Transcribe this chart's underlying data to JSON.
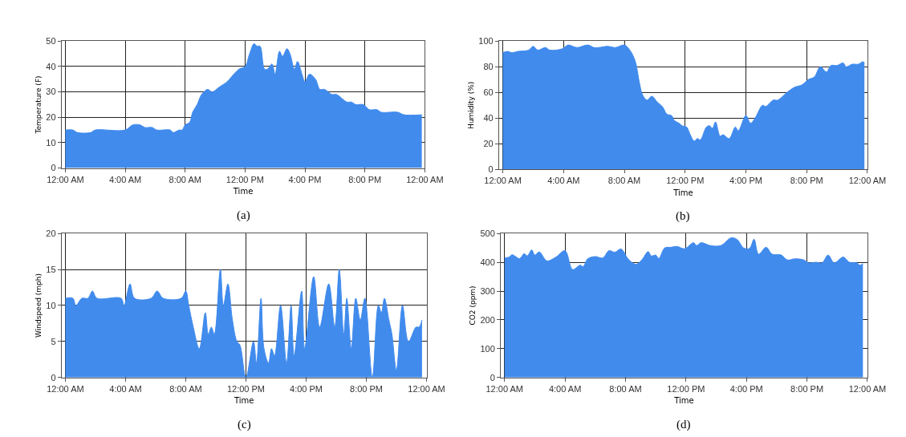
{
  "chart_data": [
    {
      "type": "area",
      "xlabel": "Time",
      "ylabel": "Temperature (F)",
      "annotations": [
        "(a)"
      ],
      "grid": true,
      "xlim": [
        -0.25,
        24
      ],
      "ylim": [
        0,
        50
      ],
      "yticks": [
        0,
        10,
        20,
        30,
        40,
        50
      ],
      "xticks": [
        {
          "value": 0,
          "label": "12:00 AM"
        },
        {
          "value": 4,
          "label": "4:00 AM"
        },
        {
          "value": 8,
          "label": "8:00 AM"
        },
        {
          "value": 12,
          "label": "12:00 PM"
        },
        {
          "value": 16,
          "label": "4:00 PM"
        },
        {
          "value": 20,
          "label": "8:00 PM"
        },
        {
          "value": 24,
          "label": "12:00 AM"
        }
      ],
      "series": [
        {
          "color": "#418bed",
          "x": [
            0,
            0.5,
            0.8,
            1.7,
            2,
            4,
            4.5,
            5,
            5.3,
            5.8,
            6.1,
            7,
            7.2,
            7.6,
            7.8,
            8,
            8.3,
            8.5,
            8.8,
            9.1,
            9.5,
            9.8,
            10.3,
            10.8,
            11.1,
            11.6,
            12,
            12.3,
            12.6,
            12.8,
            13,
            13.3,
            13.5,
            13.8,
            14,
            14.3,
            14.5,
            14.8,
            15,
            15.3,
            15.5,
            15.8,
            16,
            16.3,
            16.7,
            17,
            17.3,
            17.8,
            18.1,
            18.8,
            19.1,
            19.4,
            19.9,
            20.3,
            20.8,
            21.1,
            22.2,
            22.6,
            23.8
          ],
          "values": [
            15,
            15,
            14,
            14,
            15,
            15,
            17,
            17,
            16,
            16,
            15,
            15,
            14,
            15,
            15,
            17,
            18,
            22,
            25,
            29,
            31,
            30,
            32,
            34,
            36,
            39,
            40,
            45,
            49,
            48,
            48,
            39,
            39,
            41,
            37,
            46,
            44,
            47,
            45,
            39,
            42,
            37,
            34,
            37,
            35,
            31,
            31,
            29,
            29,
            26,
            26,
            25,
            25,
            23,
            23,
            22,
            22,
            21,
            21
          ]
        }
      ]
    },
    {
      "type": "area",
      "xlabel": "Time",
      "ylabel": "Humidity (%)",
      "annotations": [
        "(b)"
      ],
      "grid": true,
      "xlim": [
        -0.25,
        24
      ],
      "ylim": [
        0,
        100
      ],
      "yticks": [
        0,
        20,
        40,
        60,
        80,
        100
      ],
      "xticks": [
        {
          "value": 0,
          "label": "12:00 AM"
        },
        {
          "value": 4,
          "label": "4:00 AM"
        },
        {
          "value": 8,
          "label": "8:00 AM"
        },
        {
          "value": 12,
          "label": "12:00 PM"
        },
        {
          "value": 16,
          "label": "4:00 PM"
        },
        {
          "value": 20,
          "label": "8:00 PM"
        },
        {
          "value": 24,
          "label": "12:00 AM"
        }
      ],
      "series": [
        {
          "color": "#418bed",
          "x": [
            0,
            0.3,
            0.6,
            1,
            1.7,
            2,
            2.3,
            2.8,
            3.1,
            3.9,
            4.3,
            4.6,
            4.9,
            5.6,
            6,
            6.3,
            6.9,
            7.4,
            8,
            8.3,
            8.7,
            9,
            9.2,
            9.5,
            9.8,
            10.2,
            10.5,
            10.8,
            11.1,
            11.3,
            11.6,
            11.8,
            12.1,
            12.3,
            12.6,
            12.8,
            13,
            13.4,
            13.6,
            13.8,
            14,
            14.3,
            14.5,
            14.9,
            15.3,
            15.5,
            16,
            16.3,
            16.6,
            17.1,
            17.3,
            17.8,
            18.1,
            18.7,
            19.2,
            19.7,
            20.1,
            20.5,
            20.9,
            21.3,
            21.6,
            22,
            22.4,
            22.6,
            23,
            23.4,
            23.7,
            23.8
          ],
          "values": [
            91,
            92,
            91,
            92,
            93,
            96,
            93,
            95,
            93,
            94,
            97,
            96,
            95,
            97,
            95,
            95,
            96,
            95,
            97,
            94,
            85,
            67,
            58,
            54,
            57,
            52,
            49,
            43,
            42,
            38,
            36,
            34,
            33,
            28,
            22,
            24,
            23,
            33,
            34,
            32,
            37,
            26,
            27,
            24,
            33,
            30,
            42,
            36,
            40,
            50,
            49,
            54,
            54,
            60,
            64,
            66,
            70,
            72,
            80,
            76,
            81,
            81,
            83,
            80,
            82,
            82,
            84,
            83
          ]
        }
      ]
    },
    {
      "type": "area",
      "xlabel": "Time",
      "ylabel": "Windspeed (mph)",
      "annotations": [
        "(c)"
      ],
      "grid": true,
      "xlim": [
        -0.25,
        24
      ],
      "ylim": [
        0,
        20
      ],
      "yticks": [
        0,
        5,
        10,
        15,
        20
      ],
      "xticks": [
        {
          "value": 0,
          "label": "12:00 AM"
        },
        {
          "value": 4,
          "label": "4:00 AM"
        },
        {
          "value": 8,
          "label": "8:00 AM"
        },
        {
          "value": 12,
          "label": "12:00 PM"
        },
        {
          "value": 16,
          "label": "4:00 PM"
        },
        {
          "value": 20,
          "label": "8:00 PM"
        },
        {
          "value": 24,
          "label": "12:00 AM"
        }
      ],
      "series": [
        {
          "color": "#418bed",
          "x": [
            0,
            0.5,
            0.7,
            1.1,
            1.5,
            1.8,
            2.1,
            3.7,
            3.9,
            4.3,
            4.6,
            5.7,
            6.1,
            6.5,
            7.7,
            8,
            8.2,
            8.5,
            8.9,
            9.3,
            9.5,
            9.7,
            9.9,
            10.3,
            10.5,
            10.8,
            11.1,
            11.4,
            11.6,
            12,
            12.5,
            12.7,
            13,
            13.2,
            13.5,
            13.7,
            13.9,
            14.3,
            14.7,
            15,
            15.2,
            15.7,
            15.9,
            16.5,
            16.9,
            17.5,
            17.9,
            18.2,
            18.5,
            18.7,
            19,
            19.3,
            19.6,
            19.9,
            20.4,
            20.8,
            21,
            21.2,
            21.5,
            21.7,
            22,
            22.4,
            22.8,
            23.3,
            23.5,
            23.7
          ],
          "values": [
            11,
            11,
            10,
            11,
            11,
            12,
            11,
            11,
            10,
            13,
            11,
            11,
            12,
            11,
            11,
            12,
            10,
            7,
            4,
            9,
            6,
            7,
            6,
            15,
            10,
            13,
            8,
            5,
            4.5,
            0,
            5,
            2,
            11,
            4,
            2,
            4,
            3,
            10,
            2,
            10,
            3,
            12,
            4,
            14,
            7,
            13,
            7,
            15,
            6,
            11,
            4,
            11,
            8,
            11,
            0,
            10,
            9,
            11,
            8,
            6,
            1,
            10,
            5,
            7,
            7,
            8
          ]
        }
      ]
    },
    {
      "type": "area",
      "xlabel": "Time",
      "ylabel": "CO2 (ppm)",
      "annotations": [
        "(d)"
      ],
      "grid": true,
      "xlim": [
        -0.25,
        24
      ],
      "ylim": [
        0,
        500
      ],
      "yticks": [
        0,
        100,
        200,
        300,
        400,
        500
      ],
      "xticks": [
        {
          "value": 0,
          "label": "12:00 AM"
        },
        {
          "value": 4,
          "label": "4:00 AM"
        },
        {
          "value": 8,
          "label": "8:00 AM"
        },
        {
          "value": 12,
          "label": "12:00 PM"
        },
        {
          "value": 16,
          "label": "4:00 PM"
        },
        {
          "value": 20,
          "label": "8:00 PM"
        },
        {
          "value": 24,
          "label": "12:00 AM"
        }
      ],
      "series": [
        {
          "color": "#418bed",
          "x": [
            0,
            0.3,
            0.5,
            1,
            1.3,
            1.5,
            1.8,
            2,
            2.3,
            2.8,
            3.4,
            4,
            4.5,
            5,
            5.2,
            5.5,
            6,
            6.5,
            6.9,
            7.3,
            7.7,
            8.2,
            8.7,
            9.1,
            9.5,
            9.7,
            10,
            10.2,
            10.6,
            11,
            11.4,
            11.9,
            12.5,
            12.7,
            13,
            13.6,
            14.3,
            15,
            15.4,
            15.8,
            16.2,
            16.5,
            16.8,
            17.3,
            17.7,
            18.3,
            18.7,
            19.2,
            19.8,
            20.1,
            20.6,
            21,
            21.4,
            21.8,
            22.4,
            22.8,
            23.3,
            23.5,
            23.7
          ],
          "values": [
            415,
            418,
            426,
            413,
            430,
            422,
            443,
            425,
            436,
            405,
            418,
            440,
            375,
            390,
            385,
            412,
            420,
            415,
            440,
            435,
            446,
            410,
            393,
            410,
            437,
            422,
            425,
            413,
            450,
            452,
            455,
            447,
            468,
            458,
            468,
            458,
            458,
            485,
            478,
            450,
            448,
            480,
            428,
            452,
            428,
            425,
            408,
            412,
            408,
            398,
            400,
            398,
            425,
            398,
            418,
            400,
            398,
            390,
            395
          ]
        }
      ]
    }
  ]
}
